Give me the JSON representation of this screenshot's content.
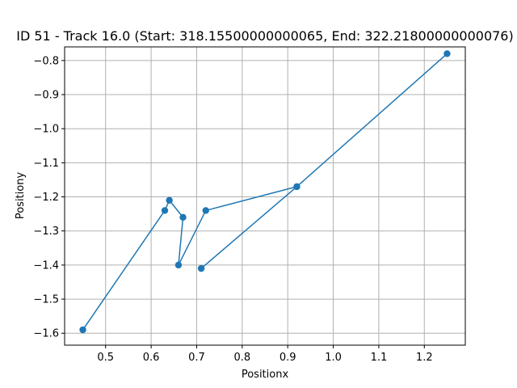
{
  "chart_data": {
    "type": "line",
    "title": "ID 51 - Track 16.0 (Start: 318.15500000000065, End: 322.21800000000076)",
    "xlabel": "Positionx",
    "ylabel": "Positiony",
    "xlim": [
      0.41,
      1.29
    ],
    "ylim": [
      -1.635,
      -0.76
    ],
    "grid": true,
    "series": [
      {
        "color": "#1f77b4",
        "marker": "circle",
        "x": [
          0.45,
          0.63,
          0.64,
          0.67,
          0.66,
          0.72,
          0.92,
          0.71,
          0.92,
          1.25
        ],
        "y": [
          -1.59,
          -1.24,
          -1.21,
          -1.26,
          -1.4,
          -1.24,
          -1.17,
          -1.41,
          -1.17,
          -0.78
        ]
      }
    ],
    "xticks": [
      "0.5",
      "0.6",
      "0.7",
      "0.8",
      "0.9",
      "1.0",
      "1.1",
      "1.2"
    ],
    "xtick_values": [
      0.5,
      0.6,
      0.7,
      0.8,
      0.9,
      1.0,
      1.1,
      1.2
    ],
    "yticks": [
      "−0.8",
      "−0.9",
      "−1.0",
      "−1.1",
      "−1.2",
      "−1.3",
      "−1.4",
      "−1.5",
      "−1.6"
    ],
    "ytick_values": [
      -0.8,
      -0.9,
      -1.0,
      -1.1,
      -1.2,
      -1.3,
      -1.4,
      -1.5,
      -1.6
    ]
  }
}
